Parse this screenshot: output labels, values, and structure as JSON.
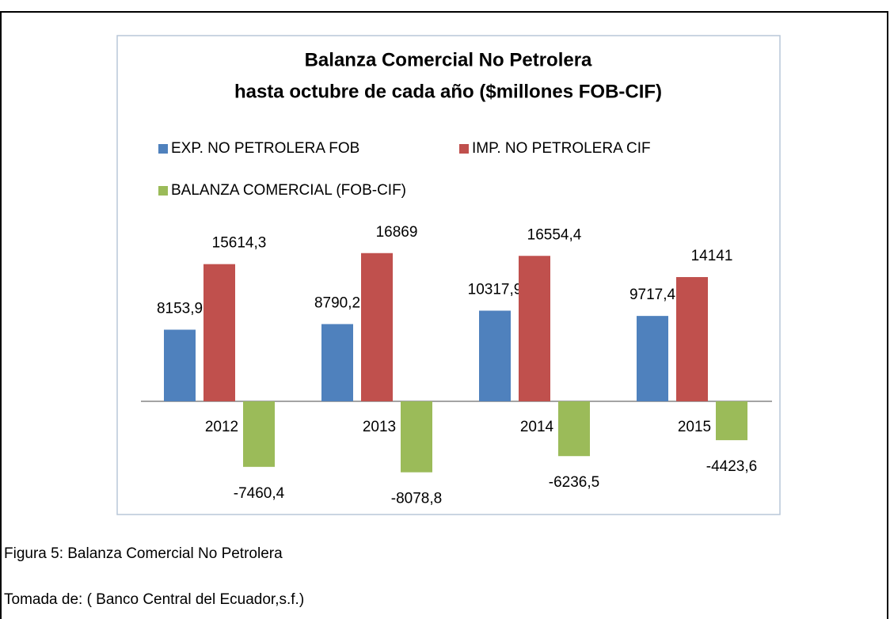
{
  "chart_data": {
    "type": "bar",
    "title": [
      "Balanza Comercial No Petrolera",
      "hasta octubre de cada año ($millones FOB-CIF)"
    ],
    "categories": [
      "2012",
      "2013",
      "2014",
      "2015"
    ],
    "series": [
      {
        "name": "EXP. NO PETROLERA FOB",
        "color": "#4f81bd",
        "values": [
          8153.9,
          8790.2,
          10317.9,
          9717.4
        ],
        "value_labels": [
          "8153,9",
          "8790,2",
          "10317,9",
          "9717,4"
        ]
      },
      {
        "name": "IMP. NO PETROLERA CIF",
        "color": "#c0504d",
        "values": [
          15614.3,
          16869,
          16554.4,
          14141
        ],
        "value_labels": [
          "15614,3",
          "16869",
          "16554,4",
          "14141"
        ]
      },
      {
        "name": "BALANZA COMERCIAL (FOB-CIF)",
        "color": "#9bbb59",
        "values": [
          -7460.4,
          -8078.8,
          -6236.5,
          -4423.6
        ],
        "value_labels": [
          "-7460,4",
          "-8078,8",
          "-6236,5",
          "-4423,6"
        ]
      }
    ]
  },
  "caption": {
    "figure": "Figura 5: Balanza Comercial No Petrolera",
    "source": "Tomada de:  ( Banco Central del Ecuador,s.f.)"
  }
}
